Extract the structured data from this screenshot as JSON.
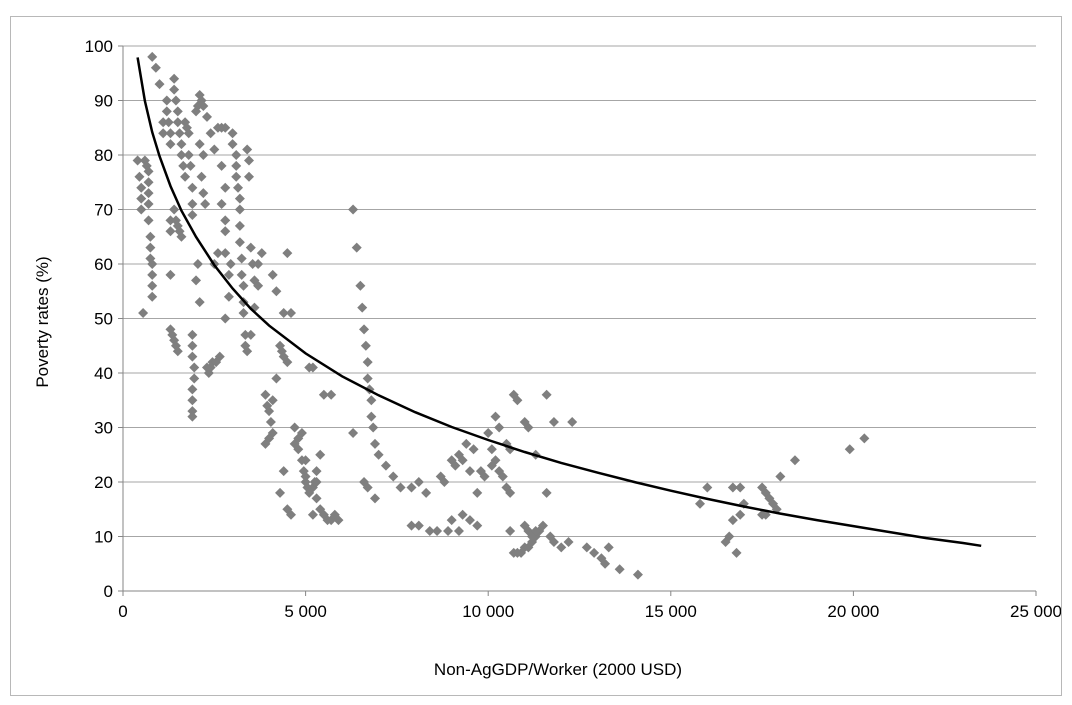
{
  "chart_data": {
    "type": "scatter",
    "title": "",
    "xlabel": "Non-AgGDP/Worker  (2000 USD)",
    "ylabel": "Poverty rates (%)",
    "xlim": [
      0,
      25000
    ],
    "ylim": [
      0,
      100
    ],
    "x_ticks": [
      0,
      5000,
      10000,
      15000,
      20000,
      25000
    ],
    "x_tick_labels": [
      "0",
      "5 000",
      "10 000",
      "15 000",
      "20 000",
      "25 000"
    ],
    "y_ticks": [
      0,
      10,
      20,
      30,
      40,
      50,
      60,
      70,
      80,
      90,
      100
    ],
    "y_tick_labels": [
      "0",
      "10",
      "20",
      "30",
      "40",
      "50",
      "60",
      "70",
      "80",
      "90",
      "100"
    ],
    "grid": "horizontal",
    "legend": "none",
    "colors": {
      "points": "#7f7f7f",
      "trend": "#000000",
      "grid": "#a6a6a6",
      "axis": "#868686"
    },
    "series": [
      {
        "kind": "scatter",
        "marker": "diamond",
        "points": [
          [
            400,
            79
          ],
          [
            450,
            76
          ],
          [
            500,
            74
          ],
          [
            500,
            72
          ],
          [
            500,
            70
          ],
          [
            550,
            51
          ],
          [
            600,
            79
          ],
          [
            650,
            78
          ],
          [
            700,
            77
          ],
          [
            700,
            75
          ],
          [
            700,
            73
          ],
          [
            700,
            71
          ],
          [
            700,
            68
          ],
          [
            750,
            65
          ],
          [
            750,
            63
          ],
          [
            750,
            61
          ],
          [
            800,
            60
          ],
          [
            800,
            58
          ],
          [
            800,
            56
          ],
          [
            800,
            54
          ],
          [
            800,
            98
          ],
          [
            900,
            96
          ],
          [
            1000,
            93
          ],
          [
            1100,
            86
          ],
          [
            1100,
            84
          ],
          [
            1200,
            90
          ],
          [
            1200,
            88
          ],
          [
            1250,
            86
          ],
          [
            1300,
            84
          ],
          [
            1300,
            82
          ],
          [
            1300,
            68
          ],
          [
            1300,
            66
          ],
          [
            1300,
            58
          ],
          [
            1300,
            48
          ],
          [
            1350,
            47
          ],
          [
            1400,
            46
          ],
          [
            1450,
            45
          ],
          [
            1500,
            44
          ],
          [
            1400,
            94
          ],
          [
            1400,
            92
          ],
          [
            1450,
            90
          ],
          [
            1500,
            88
          ],
          [
            1500,
            86
          ],
          [
            1550,
            84
          ],
          [
            1600,
            82
          ],
          [
            1600,
            80
          ],
          [
            1650,
            78
          ],
          [
            1700,
            76
          ],
          [
            1400,
            70
          ],
          [
            1450,
            68
          ],
          [
            1500,
            67
          ],
          [
            1550,
            66
          ],
          [
            1600,
            65
          ],
          [
            1700,
            86
          ],
          [
            1750,
            85
          ],
          [
            1800,
            84
          ],
          [
            1800,
            80
          ],
          [
            1850,
            78
          ],
          [
            1900,
            74
          ],
          [
            1900,
            71
          ],
          [
            1900,
            69
          ],
          [
            1900,
            47
          ],
          [
            1900,
            45
          ],
          [
            1900,
            43
          ],
          [
            1950,
            41
          ],
          [
            1950,
            39
          ],
          [
            1900,
            37
          ],
          [
            1900,
            35
          ],
          [
            1900,
            33
          ],
          [
            1900,
            32
          ],
          [
            2000,
            57
          ],
          [
            2050,
            60
          ],
          [
            2100,
            53
          ],
          [
            2000,
            88
          ],
          [
            2050,
            89
          ],
          [
            2100,
            91
          ],
          [
            2150,
            90
          ],
          [
            2200,
            89
          ],
          [
            2100,
            82
          ],
          [
            2200,
            80
          ],
          [
            2150,
            76
          ],
          [
            2200,
            73
          ],
          [
            2250,
            71
          ],
          [
            2300,
            41
          ],
          [
            2350,
            40
          ],
          [
            2400,
            41
          ],
          [
            2450,
            42
          ],
          [
            2550,
            42
          ],
          [
            2650,
            43
          ],
          [
            2300,
            87
          ],
          [
            2400,
            84
          ],
          [
            2500,
            81
          ],
          [
            2600,
            85
          ],
          [
            2700,
            85
          ],
          [
            2800,
            85
          ],
          [
            2700,
            78
          ],
          [
            2800,
            74
          ],
          [
            2700,
            71
          ],
          [
            2800,
            68
          ],
          [
            2800,
            66
          ],
          [
            2800,
            62
          ],
          [
            2800,
            50
          ],
          [
            2900,
            54
          ],
          [
            2900,
            58
          ],
          [
            2950,
            60
          ],
          [
            3000,
            84
          ],
          [
            3000,
            82
          ],
          [
            3100,
            80
          ],
          [
            3100,
            78
          ],
          [
            3100,
            76
          ],
          [
            3150,
            74
          ],
          [
            3200,
            72
          ],
          [
            3200,
            70
          ],
          [
            3200,
            67
          ],
          [
            3200,
            64
          ],
          [
            3250,
            61
          ],
          [
            3250,
            58
          ],
          [
            3300,
            56
          ],
          [
            3300,
            53
          ],
          [
            3300,
            51
          ],
          [
            3350,
            47
          ],
          [
            3350,
            45
          ],
          [
            3400,
            44
          ],
          [
            3400,
            81
          ],
          [
            3450,
            79
          ],
          [
            3450,
            76
          ],
          [
            3500,
            63
          ],
          [
            3550,
            60
          ],
          [
            3600,
            57
          ],
          [
            3700,
            56
          ],
          [
            3800,
            62
          ],
          [
            3900,
            36
          ],
          [
            3950,
            34
          ],
          [
            4000,
            33
          ],
          [
            4050,
            31
          ],
          [
            4100,
            29
          ],
          [
            3900,
            27
          ],
          [
            4000,
            28
          ],
          [
            4100,
            35
          ],
          [
            4200,
            39
          ],
          [
            4100,
            58
          ],
          [
            4200,
            55
          ],
          [
            4300,
            45
          ],
          [
            4350,
            44
          ],
          [
            4400,
            43
          ],
          [
            4500,
            42
          ],
          [
            4400,
            51
          ],
          [
            4500,
            62
          ],
          [
            4600,
            51
          ],
          [
            4300,
            18
          ],
          [
            4400,
            22
          ],
          [
            4500,
            15
          ],
          [
            4600,
            14
          ],
          [
            4700,
            27
          ],
          [
            4800,
            28
          ],
          [
            4900,
            29
          ],
          [
            5000,
            24
          ],
          [
            5000,
            21
          ],
          [
            5050,
            19
          ],
          [
            5100,
            18
          ],
          [
            5100,
            41
          ],
          [
            5200,
            41
          ],
          [
            5300,
            22
          ],
          [
            5300,
            20
          ],
          [
            5400,
            25
          ],
          [
            5200,
            19
          ],
          [
            5300,
            17
          ],
          [
            5500,
            36
          ],
          [
            5700,
            36
          ],
          [
            5400,
            15
          ],
          [
            5500,
            14
          ],
          [
            5600,
            13
          ],
          [
            5700,
            13
          ],
          [
            5800,
            14
          ],
          [
            5900,
            13
          ],
          [
            4700,
            30
          ],
          [
            4800,
            26
          ],
          [
            4900,
            24
          ],
          [
            4950,
            22
          ],
          [
            5000,
            20
          ],
          [
            5200,
            14
          ],
          [
            5250,
            20
          ],
          [
            6300,
            70
          ],
          [
            6300,
            29
          ],
          [
            6400,
            63
          ],
          [
            6500,
            56
          ],
          [
            6550,
            52
          ],
          [
            6600,
            48
          ],
          [
            6650,
            45
          ],
          [
            6700,
            42
          ],
          [
            6700,
            39
          ],
          [
            6750,
            37
          ],
          [
            6800,
            35
          ],
          [
            6800,
            32
          ],
          [
            6850,
            30
          ],
          [
            6900,
            27
          ],
          [
            6600,
            20
          ],
          [
            6700,
            19
          ],
          [
            6900,
            17
          ],
          [
            7000,
            25
          ],
          [
            7200,
            23
          ],
          [
            7400,
            21
          ],
          [
            7600,
            19
          ],
          [
            7900,
            12
          ],
          [
            8100,
            12
          ],
          [
            8400,
            11
          ],
          [
            8600,
            11
          ],
          [
            8900,
            11
          ],
          [
            7900,
            19
          ],
          [
            8100,
            20
          ],
          [
            8300,
            18
          ],
          [
            8700,
            21
          ],
          [
            9000,
            24
          ],
          [
            9200,
            25
          ],
          [
            9400,
            27
          ],
          [
            9600,
            26
          ],
          [
            9000,
            13
          ],
          [
            9200,
            11
          ],
          [
            9300,
            14
          ],
          [
            9500,
            13
          ],
          [
            9700,
            12
          ],
          [
            9700,
            18
          ],
          [
            9900,
            21
          ],
          [
            10000,
            29
          ],
          [
            10100,
            26
          ],
          [
            10200,
            24
          ],
          [
            10300,
            22
          ],
          [
            10400,
            21
          ],
          [
            10500,
            19
          ],
          [
            10600,
            18
          ],
          [
            10200,
            32
          ],
          [
            10300,
            30
          ],
          [
            10500,
            27
          ],
          [
            10600,
            26
          ],
          [
            10700,
            36
          ],
          [
            10800,
            35
          ],
          [
            11000,
            31
          ],
          [
            11100,
            30
          ],
          [
            11300,
            25
          ],
          [
            10600,
            11
          ],
          [
            10700,
            7
          ],
          [
            10800,
            7
          ],
          [
            10900,
            7
          ],
          [
            11000,
            8
          ],
          [
            11100,
            8
          ],
          [
            11200,
            9
          ],
          [
            11300,
            10
          ],
          [
            11400,
            11
          ],
          [
            11500,
            12
          ],
          [
            11000,
            12
          ],
          [
            11100,
            11
          ],
          [
            11200,
            10
          ],
          [
            11300,
            11
          ],
          [
            11600,
            36
          ],
          [
            11800,
            31
          ],
          [
            11600,
            18
          ],
          [
            11700,
            10
          ],
          [
            11800,
            9
          ],
          [
            12000,
            8
          ],
          [
            12200,
            9
          ],
          [
            12300,
            31
          ],
          [
            12700,
            8
          ],
          [
            12900,
            7
          ],
          [
            13100,
            6
          ],
          [
            13200,
            5
          ],
          [
            13300,
            8
          ],
          [
            13600,
            4
          ],
          [
            14100,
            3
          ],
          [
            15800,
            16
          ],
          [
            16000,
            19
          ],
          [
            16500,
            9
          ],
          [
            16600,
            10
          ],
          [
            16700,
            19
          ],
          [
            16800,
            7
          ],
          [
            16700,
            13
          ],
          [
            16900,
            14
          ],
          [
            16900,
            19
          ],
          [
            17000,
            16
          ],
          [
            17500,
            14
          ],
          [
            17600,
            14
          ],
          [
            17500,
            19
          ],
          [
            17600,
            18
          ],
          [
            17700,
            17
          ],
          [
            17800,
            16
          ],
          [
            17900,
            15
          ],
          [
            18000,
            21
          ],
          [
            18400,
            24
          ],
          [
            19900,
            26
          ],
          [
            20300,
            28
          ],
          [
            9800,
            22
          ],
          [
            10100,
            23
          ],
          [
            9500,
            22
          ],
          [
            9100,
            23
          ],
          [
            8800,
            20
          ],
          [
            9300,
            24
          ],
          [
            2500,
            60
          ],
          [
            2600,
            62
          ],
          [
            3700,
            60
          ],
          [
            3600,
            52
          ],
          [
            3500,
            47
          ]
        ]
      },
      {
        "kind": "trendline",
        "type": "logarithmic",
        "x": [
          400,
          600,
          800,
          1000,
          1300,
          1600,
          2000,
          2500,
          3000,
          3500,
          4000,
          5000,
          6000,
          7000,
          8000,
          9000,
          10000,
          11000,
          12000,
          13000,
          14000,
          15000,
          16000,
          17000,
          18000,
          19000,
          20000,
          21000,
          22000,
          23000,
          23500
        ],
        "y": [
          97.9,
          89.9,
          84.2,
          79.8,
          74.3,
          69.8,
          65.0,
          59.8,
          55.5,
          51.8,
          48.7,
          43.6,
          39.4,
          35.9,
          32.8,
          30.1,
          27.7,
          25.5,
          23.5,
          21.7,
          20.0,
          18.4,
          16.9,
          15.5,
          14.2,
          13.0,
          11.9,
          10.8,
          9.7,
          8.8,
          8.3
        ]
      }
    ]
  }
}
